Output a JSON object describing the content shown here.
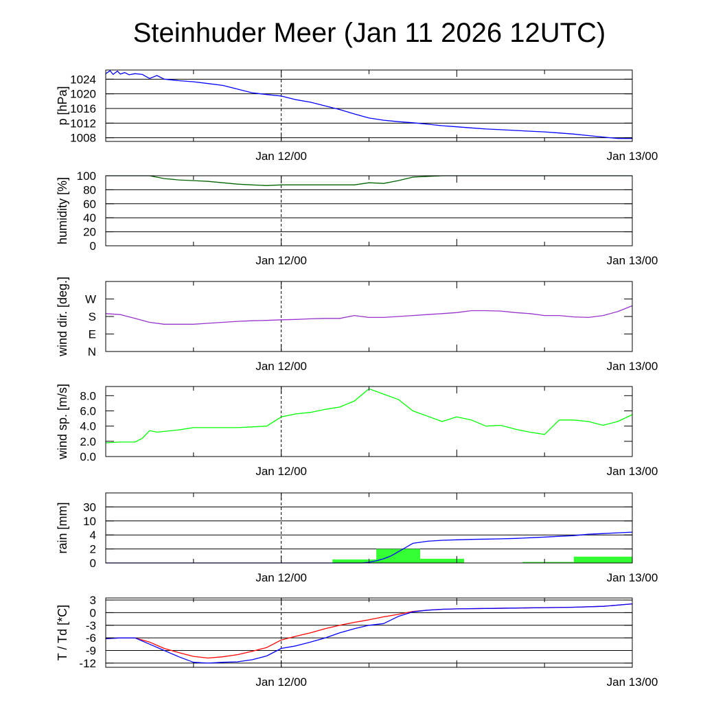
{
  "title": "Steinhuder Meer (Jan 11 2026 12UTC)",
  "chart_data": [
    {
      "type": "line",
      "name": "pressure",
      "ylabel": "p [hPa]",
      "ylim": [
        1007,
        1026.5
      ],
      "yticks": [
        1008,
        1012,
        1016,
        1020,
        1024
      ],
      "ytick_labels": [
        "1008",
        "1012",
        "1016",
        "1020",
        "1024"
      ],
      "grid": true,
      "xlim": [
        0,
        36
      ],
      "xticks": [
        12,
        36
      ],
      "xtick_labels": [
        "Jan 12/00",
        "Jan 13/00"
      ],
      "series": [
        {
          "name": "pressure",
          "color": "#0000ff",
          "x": [
            0,
            0.3,
            0.5,
            0.8,
            1,
            1.3,
            1.6,
            2,
            2.5,
            3,
            3.5,
            4,
            5,
            6,
            7,
            8,
            9,
            10,
            11,
            12,
            13,
            14,
            15,
            16,
            17,
            18,
            19,
            20,
            21,
            22,
            23,
            24,
            25,
            26,
            27,
            28,
            29,
            30,
            31,
            32,
            33,
            34,
            35,
            36
          ],
          "y": [
            1025.5,
            1026.3,
            1025.3,
            1026.2,
            1025.4,
            1025.8,
            1025.2,
            1025.5,
            1025.3,
            1024.2,
            1025.0,
            1024.0,
            1023.6,
            1023.3,
            1022.8,
            1022.3,
            1021.3,
            1020.3,
            1019.8,
            1019.4,
            1018.4,
            1017.7,
            1016.7,
            1015.7,
            1014.5,
            1013.4,
            1012.8,
            1012.4,
            1012.1,
            1011.7,
            1011.3,
            1011.0,
            1010.7,
            1010.4,
            1010.2,
            1010.0,
            1009.8,
            1009.6,
            1009.3,
            1009.0,
            1008.6,
            1008.2,
            1007.8,
            1007.8
          ]
        }
      ]
    },
    {
      "type": "line",
      "name": "humidity",
      "ylabel": "humidity [%]",
      "ylim": [
        0,
        100
      ],
      "yticks": [
        0,
        20,
        40,
        60,
        80,
        100
      ],
      "ytick_labels": [
        "0",
        "20",
        "40",
        "60",
        "80",
        "100"
      ],
      "grid": true,
      "xlim": [
        0,
        36
      ],
      "xticks": [
        12,
        36
      ],
      "xtick_labels": [
        "Jan 12/00",
        "Jan 13/00"
      ],
      "series": [
        {
          "name": "humidity",
          "color": "#006400",
          "x": [
            0,
            1,
            2,
            3,
            4,
            5,
            6,
            7,
            8,
            9,
            10,
            11,
            12,
            13,
            14,
            15,
            16,
            17,
            18,
            19,
            20,
            21,
            22,
            23,
            24,
            36
          ],
          "y": [
            100,
            100,
            100,
            100,
            96,
            94,
            93,
            92,
            90,
            88,
            87,
            86,
            87,
            87,
            87,
            87,
            87,
            87,
            90,
            89,
            93,
            98,
            99,
            100,
            100,
            100
          ]
        }
      ]
    },
    {
      "type": "line",
      "name": "wind-direction",
      "ylabel": "wind dir. [deg.]",
      "ylim": [
        0,
        360
      ],
      "yticks": [
        0,
        90,
        180,
        270
      ],
      "ytick_labels": [
        "N",
        "E",
        "S",
        "W"
      ],
      "grid": false,
      "xlim": [
        0,
        36
      ],
      "xticks": [
        12,
        36
      ],
      "xtick_labels": [
        "Jan 12/00",
        "Jan 13/00"
      ],
      "series": [
        {
          "name": "wind direction",
          "color": "#9932cc",
          "x": [
            0,
            1,
            2,
            3,
            4,
            5,
            6,
            7,
            8,
            9,
            10,
            11,
            12,
            13,
            14,
            15,
            16,
            17,
            18,
            19,
            20,
            21,
            22,
            23,
            24,
            25,
            26,
            27,
            28,
            29,
            30,
            31,
            32,
            33,
            34,
            35,
            36
          ],
          "y": [
            195,
            190,
            170,
            150,
            140,
            140,
            140,
            145,
            150,
            155,
            158,
            160,
            163,
            165,
            168,
            170,
            170,
            185,
            175,
            175,
            180,
            185,
            190,
            195,
            200,
            210,
            210,
            208,
            200,
            195,
            185,
            185,
            178,
            175,
            185,
            205,
            235
          ]
        }
      ]
    },
    {
      "type": "line",
      "name": "wind-speed",
      "ylabel": "wind sp. [m/s]",
      "ylim": [
        0,
        9.2
      ],
      "yticks": [
        0,
        2,
        4,
        6,
        8
      ],
      "ytick_labels": [
        "0.0",
        "2.0",
        "4.0",
        "6.0",
        "8.0"
      ],
      "grid": false,
      "xlim": [
        0,
        36
      ],
      "xticks": [
        12,
        36
      ],
      "xtick_labels": [
        "Jan 12/00",
        "Jan 13/00"
      ],
      "series": [
        {
          "name": "wind speed",
          "color": "#00ff00",
          "x": [
            0,
            1,
            2,
            2.5,
            3,
            3.5,
            4,
            5,
            6,
            7,
            8,
            9,
            10,
            11,
            12,
            13,
            14,
            15,
            16,
            17,
            18,
            19,
            20,
            21,
            22,
            23,
            24,
            25,
            26,
            27,
            28,
            29,
            30,
            31,
            32,
            33,
            34,
            35,
            36
          ],
          "y": [
            1.8,
            1.9,
            1.9,
            2.4,
            3.4,
            3.2,
            3.3,
            3.5,
            3.8,
            3.8,
            3.8,
            3.8,
            3.9,
            4.0,
            5.2,
            5.6,
            5.8,
            6.2,
            6.5,
            7.3,
            8.9,
            8.2,
            7.5,
            6.0,
            5.3,
            4.6,
            5.2,
            4.8,
            4.0,
            4.1,
            3.6,
            3.2,
            2.9,
            4.8,
            4.8,
            4.6,
            4.1,
            4.6,
            5.5
          ]
        }
      ]
    },
    {
      "type": "bar",
      "name": "rain",
      "ylabel": "rain [mm]",
      "ylim": [
        0,
        5
      ],
      "yticks": [
        0,
        1,
        2,
        3,
        4,
        5
      ],
      "ytick_labels": [
        "0",
        "2",
        "4",
        "10",
        "30",
        ""
      ],
      "grid": true,
      "xlim": [
        0,
        36
      ],
      "xticks": [
        12,
        36
      ],
      "xtick_labels": [
        "Jan 12/00",
        "Jan 13/00"
      ],
      "bars": {
        "color": "#33ff33",
        "x_start": [
          15.5,
          18.5,
          21.5,
          28.5,
          32
        ],
        "x_end": [
          18.5,
          21.5,
          24.5,
          32,
          36
        ],
        "values": [
          0.25,
          1.0,
          0.3,
          0.07,
          0.45
        ]
      },
      "series": [
        {
          "name": "accumulated rain",
          "color": "#0000ff",
          "x": [
            0,
            17.5,
            18,
            18.5,
            19,
            19.5,
            20,
            20.5,
            21,
            22,
            23,
            24,
            25,
            26,
            27,
            28,
            29,
            30,
            31,
            32,
            33,
            34,
            35,
            36
          ],
          "y": [
            0,
            0,
            0.05,
            0.15,
            0.3,
            0.5,
            0.8,
            1.1,
            1.4,
            1.55,
            1.62,
            1.65,
            1.68,
            1.7,
            1.72,
            1.75,
            1.8,
            1.85,
            1.9,
            1.95,
            2.05,
            2.1,
            2.15,
            2.2
          ]
        }
      ]
    },
    {
      "type": "line",
      "name": "temperature-dewpoint",
      "ylabel": "T / Td [*C]",
      "ylim": [
        -13,
        3.5
      ],
      "yticks": [
        -12,
        -9,
        -6,
        -3,
        0,
        3
      ],
      "ytick_labels": [
        "-12",
        "-9",
        "-6",
        "-3",
        "0",
        "3"
      ],
      "grid": true,
      "xlim": [
        0,
        36
      ],
      "xticks": [
        12,
        36
      ],
      "xtick_labels": [
        "Jan 12/00",
        "Jan 13/00"
      ],
      "series": [
        {
          "name": "temperature",
          "color": "#ff0000",
          "x": [
            0,
            1,
            2,
            3,
            4,
            5,
            6,
            7,
            8,
            9,
            10,
            11,
            12,
            13,
            14,
            15,
            16,
            17,
            18,
            19,
            20,
            21,
            22,
            23,
            24,
            26,
            28,
            30,
            32,
            34,
            36
          ],
          "y": [
            -6.2,
            -6.0,
            -6.0,
            -7.0,
            -8.5,
            -9.5,
            -10.4,
            -10.8,
            -10.5,
            -10.0,
            -9.2,
            -8.3,
            -6.5,
            -5.6,
            -4.8,
            -3.8,
            -3.0,
            -2.3,
            -1.7,
            -1.0,
            -0.4,
            0.3,
            0.6,
            0.8,
            0.9,
            1.0,
            1.1,
            1.2,
            1.3,
            1.5,
            2.1
          ]
        },
        {
          "name": "dewpoint",
          "color": "#0000ff",
          "x": [
            0,
            1,
            2,
            3,
            4,
            5,
            6,
            7,
            8,
            9,
            10,
            11,
            12,
            13,
            14,
            15,
            16,
            17,
            18,
            19,
            20,
            21,
            22,
            23,
            24,
            26,
            28,
            30,
            32,
            34,
            36
          ],
          "y": [
            -6.2,
            -6.0,
            -6.0,
            -7.5,
            -9.0,
            -10.5,
            -11.8,
            -12.0,
            -11.8,
            -11.7,
            -11.2,
            -10.3,
            -8.5,
            -7.9,
            -7.0,
            -6.0,
            -4.8,
            -3.8,
            -3.0,
            -2.6,
            -0.9,
            0.2,
            0.6,
            0.8,
            0.9,
            1.0,
            1.1,
            1.2,
            1.3,
            1.5,
            2.1
          ]
        }
      ]
    }
  ]
}
